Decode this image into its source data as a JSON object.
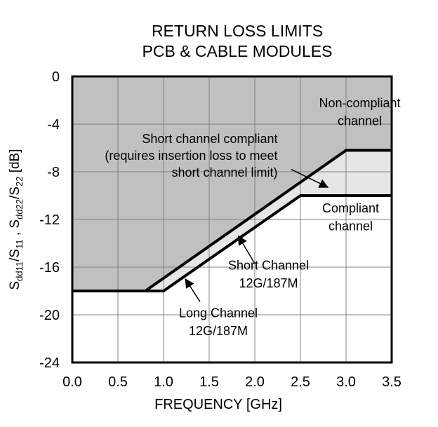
{
  "chart_data": {
    "type": "area",
    "title": [
      "RETURN LOSS LIMITS",
      "PCB & CABLE MODULES"
    ],
    "xlabel": "FREQUENCY [GHz]",
    "ylabel": {
      "parts": [
        {
          "text": "S",
          "sub": false
        },
        {
          "text": "dd11",
          "sub": true
        },
        {
          "text": "/S",
          "sub": false
        },
        {
          "text": "11",
          "sub": true
        },
        {
          "text": " , S",
          "sub": false
        },
        {
          "text": "dd22",
          "sub": true
        },
        {
          "text": "/S",
          "sub": false
        },
        {
          "text": "22",
          "sub": true
        },
        {
          "text": " [dB]",
          "sub": false
        }
      ]
    },
    "xlim": [
      0,
      3.5
    ],
    "ylim": [
      -24,
      0
    ],
    "xticks": [
      "0.0",
      "0.5",
      "1.0",
      "1.5",
      "2.0",
      "2.5",
      "3.0",
      "3.5"
    ],
    "yticks": [
      "0",
      "-4",
      "-8",
      "-12",
      "-16",
      "-20",
      "-24"
    ],
    "grid": true,
    "colors": {
      "noncompliant": "#c0c0c0",
      "short_zone": "#e6e6e6",
      "compliant": "#ffffff",
      "line": "#000000",
      "grid": "#808080"
    },
    "series": [
      {
        "id": "short",
        "x": [
          0,
          0.8,
          3.0,
          3.5
        ],
        "y": [
          -18,
          -18,
          -6.2,
          -6.2
        ]
      },
      {
        "id": "long",
        "x": [
          0,
          1.0,
          2.5,
          3.5
        ],
        "y": [
          -18,
          -18,
          -10,
          -10
        ]
      }
    ],
    "annotations": [
      {
        "id": "noncompliant",
        "lines": [
          "Non-compliant",
          "channel"
        ],
        "x": 3.15,
        "y": [
          -2.6,
          -4.1
        ],
        "anchor": "middle"
      },
      {
        "id": "shortcompliant",
        "lines": [
          "Short channel compliant",
          "(requires insertion loss to meet",
          "short channel limit)"
        ],
        "x": 2.25,
        "y": [
          -5.6,
          -7.0,
          -8.4
        ],
        "anchor": "end",
        "arrow": {
          "from": [
            2.4,
            -7.8
          ],
          "to": [
            2.8,
            -9.3
          ]
        }
      },
      {
        "id": "compliant",
        "lines": [
          "Compliant",
          "channel"
        ],
        "x": 3.05,
        "y": [
          -11.4,
          -12.9
        ],
        "anchor": "middle"
      },
      {
        "id": "shortchannel",
        "lines": [
          "Short Channel",
          "12G/187M"
        ],
        "x": 2.15,
        "y": [
          -16.2,
          -17.7
        ],
        "anchor": "middle",
        "arrow": {
          "from": [
            2.0,
            -15.7
          ],
          "to": [
            1.82,
            -13.4
          ]
        }
      },
      {
        "id": "longchannel",
        "lines": [
          "Long Channel",
          "12G/187M"
        ],
        "x": 1.6,
        "y": [
          -20.2,
          -21.7
        ],
        "anchor": "middle",
        "arrow": {
          "from": [
            1.4,
            -18.9
          ],
          "to": [
            1.24,
            -17.0
          ]
        }
      }
    ]
  }
}
